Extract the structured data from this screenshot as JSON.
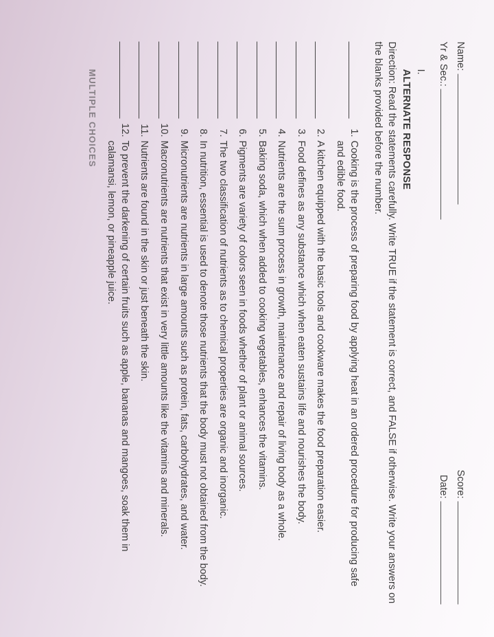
{
  "header": {
    "name_label": "Name:",
    "yrsec_label": "Yr & Sec.:",
    "score_label": "Score:",
    "date_label": "Date:"
  },
  "section": {
    "roman": "I.",
    "title": "ALTERNATE RESPONSE",
    "direction": "Direction: Read the statements carefully. Write TRUE if the statement is correct, and FALSE if otherwise. Write your answers on the blanks provided before the number."
  },
  "items": [
    {
      "n": "1.",
      "t": "Cooking is the process of preparing food by applying heat in an ordered procedure for producing safe and edible food."
    },
    {
      "n": "2.",
      "t": "A kitchen equipped with the basic tools and cookware makes the food preparation easier."
    },
    {
      "n": "3.",
      "t": "Food defines as any substance which when eaten sustains life and nourishes the body."
    },
    {
      "n": "4.",
      "t": "Nutrients are the sum process in growth, maintenance and repair of living body as a whole."
    },
    {
      "n": "5.",
      "t": "Baking soda, which when added to cooking vegetables, enhances the vitamins."
    },
    {
      "n": "6.",
      "t": "Pigments are variety of colors seen in foods whether of plant or animal sources."
    },
    {
      "n": "7.",
      "t": "The two classification of nutrients as to chemical properties are organic and inorganic."
    },
    {
      "n": "8.",
      "t": "In nutrition, essential is used to denote those nutrients that the body must not obtained from the body."
    },
    {
      "n": "9.",
      "t": "Micronutrients are nutrients in large amounts such as protein, fats, carbohydrates, and water."
    },
    {
      "n": "10.",
      "t": "Macronutrients are nutrients that exist in very little amounts like the vitamins and minerals."
    },
    {
      "n": "11.",
      "t": "Nutrients are found in the skin or just beneath the skin."
    },
    {
      "n": "12.",
      "t": "To prevent the darkening of certain fruits such as apple, bananas and mangoes, soak them in calamansi, lemon, or pineapple juice."
    }
  ],
  "footer_cut": "MULTIPLE CHOICES"
}
